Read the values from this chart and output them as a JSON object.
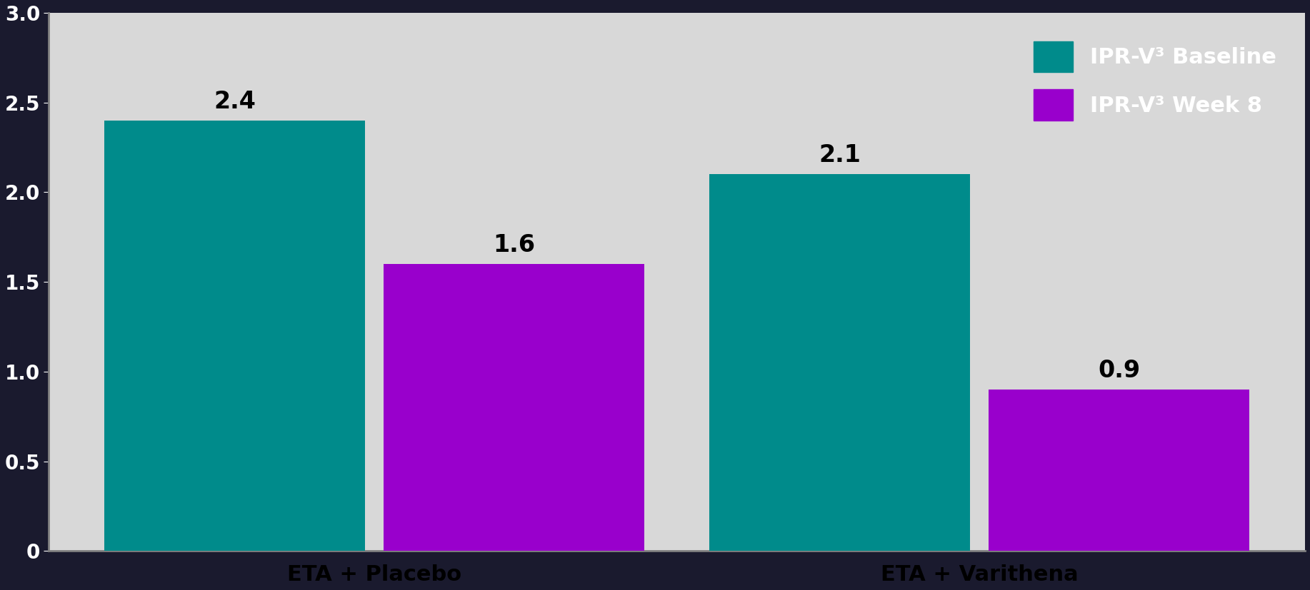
{
  "groups": [
    "ETA + Placebo",
    "ETA + Varithena"
  ],
  "baseline_values": [
    2.4,
    2.1
  ],
  "week8_values": [
    1.6,
    0.9
  ],
  "baseline_color": "#008B8B",
  "week8_color": "#9900CC",
  "ylim": [
    0,
    3.0
  ],
  "yticks": [
    0,
    0.5,
    1.0,
    1.5,
    2.0,
    2.5,
    3.0
  ],
  "legend_labels": [
    "IPR-V³ Baseline",
    "IPR-V³ Week 8"
  ],
  "bar_width": 0.28,
  "label_fontsize": 22,
  "tick_fontsize": 20,
  "legend_fontsize": 22,
  "background_color": "#1a1a2e",
  "plot_bg_color": "#d8d8d8",
  "axis_color": "#808080",
  "text_color": "#000000",
  "value_label_fontsize": 24
}
